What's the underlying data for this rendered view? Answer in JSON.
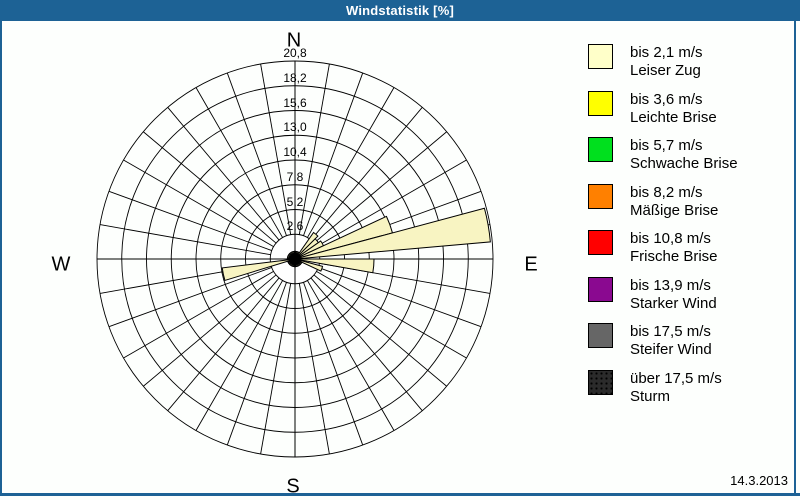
{
  "window": {
    "title": "Windstatistik [%]",
    "date": "14.3.2013",
    "frame_color": "#1D6295"
  },
  "chart_data": {
    "type": "wind-rose",
    "title": "Windstatistik [%]",
    "unit": "%",
    "compass": {
      "n": "N",
      "e": "E",
      "s": "S",
      "w": "W"
    },
    "ring_labels": [
      "2,6",
      "5,2",
      "7,8",
      "10,4",
      "13,0",
      "15,6",
      "18,2",
      "20,8"
    ],
    "ring_step": 2.6,
    "ring_count": 8,
    "max_value": 20.8,
    "sector_width_deg": 10,
    "spoke_step_deg": 10,
    "default_pct": 0.8,
    "petal_color": "#F8F4C2",
    "grid_color": "#000000",
    "petals": [
      {
        "dir_deg": 40,
        "pct": 3.4
      },
      {
        "dir_deg": 50,
        "pct": 3.0
      },
      {
        "dir_deg": 60,
        "pct": 3.3
      },
      {
        "dir_deg": 70,
        "pct": 10.6
      },
      {
        "dir_deg": 80,
        "pct": 20.6
      },
      {
        "dir_deg": 95,
        "pct": 8.3
      },
      {
        "dir_deg": 110,
        "pct": 3.0
      },
      {
        "dir_deg": 258,
        "pct": 7.7
      }
    ]
  },
  "legend": {
    "items": [
      {
        "color": "#FFFFC9",
        "pattern": "solid",
        "speed": "bis 2,1 m/s",
        "name": "Leiser Zug"
      },
      {
        "color": "#FFFF00",
        "pattern": "solid",
        "speed": "bis 3,6 m/s",
        "name": "Leichte Brise"
      },
      {
        "color": "#00E01E",
        "pattern": "solid",
        "speed": "bis 5,7 m/s",
        "name": "Schwache Brise"
      },
      {
        "color": "#FF8000",
        "pattern": "solid",
        "speed": "bis 8,2 m/s",
        "name": "Mäßige Brise"
      },
      {
        "color": "#FF0000",
        "pattern": "solid",
        "speed": "bis 10,8 m/s",
        "name": "Frische Brise"
      },
      {
        "color": "#8A0990",
        "pattern": "solid",
        "speed": "bis 13,9 m/s",
        "name": "Starker Wind"
      },
      {
        "color": "#666666",
        "pattern": "solid",
        "speed": "bis 17,5 m/s",
        "name": "Steifer Wind"
      },
      {
        "color": "#2B2B2B",
        "pattern": "dotted",
        "speed": "über 17,5 m/s",
        "name": "Sturm"
      }
    ]
  }
}
